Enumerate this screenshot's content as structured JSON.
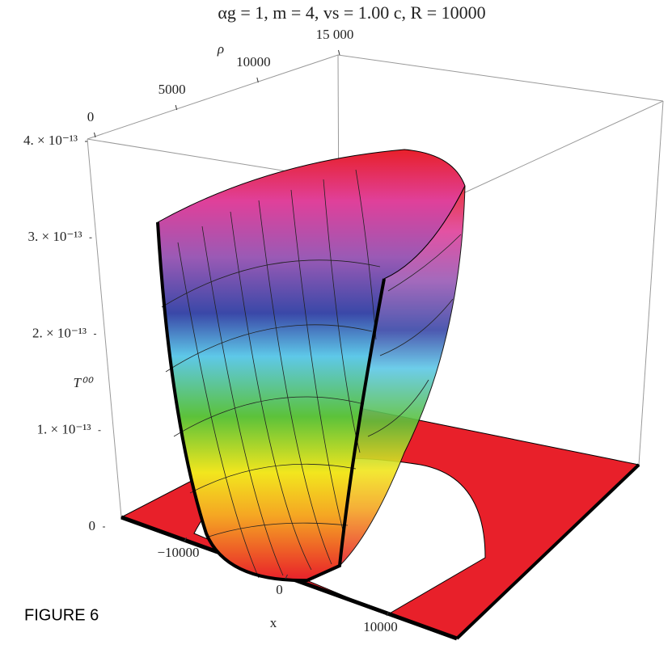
{
  "chart_data": {
    "type": "surface3d",
    "title": "αg = 1, m = 4, vs = 1.00 c, R = 10000",
    "xlabel": "x",
    "ylabel": "ρ",
    "zlabel": "T⁰⁰",
    "annotation": "FIGURE 6",
    "xlim": [
      -15000,
      15000
    ],
    "xticks": [
      {
        "value": -10000,
        "label": "−10000"
      },
      0,
      10000
    ],
    "ylim": [
      0,
      15000
    ],
    "yticks": [
      0,
      5000,
      10000,
      {
        "value": 15000,
        "label": "15 000"
      }
    ],
    "zlim": [
      0,
      4e-13
    ],
    "zticks": [
      0,
      {
        "value": 1e-13,
        "label": "1. × 10⁻¹³"
      },
      {
        "value": 2e-13,
        "label": "2. × 10⁻¹³"
      },
      {
        "value": 3e-13,
        "label": "3. × 10⁻¹³"
      },
      {
        "value": 4e-13,
        "label": "4. × 10⁻¹³"
      }
    ]
  }
}
